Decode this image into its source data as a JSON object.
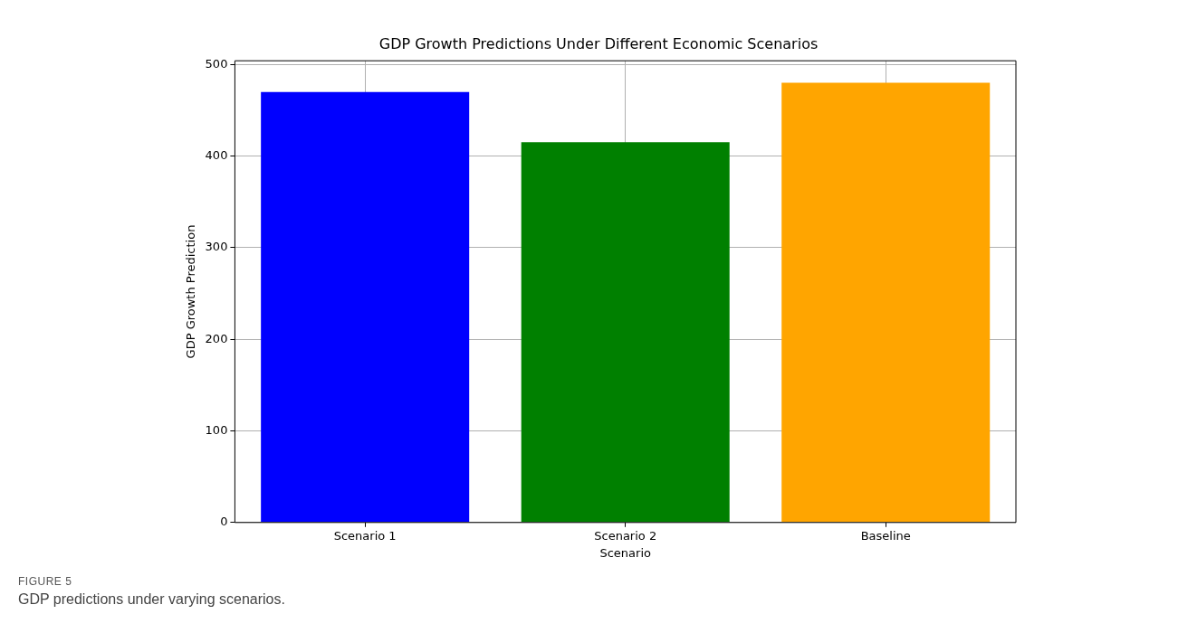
{
  "chart_data": {
    "type": "bar",
    "title": "GDP Growth Predictions Under Different Economic Scenarios",
    "xlabel": "Scenario",
    "ylabel": "GDP Growth Prediction",
    "categories": [
      "Scenario 1",
      "Scenario 2",
      "Baseline"
    ],
    "values": [
      470,
      415,
      480
    ],
    "colors": [
      "#0000ff",
      "#008000",
      "#ffa500"
    ],
    "ylim": [
      0,
      504
    ],
    "yticks": [
      0,
      100,
      200,
      300,
      400,
      500
    ],
    "grid": true,
    "annotations": [
      "FIGURE 5",
      "GDP predictions under varying scenarios."
    ]
  }
}
